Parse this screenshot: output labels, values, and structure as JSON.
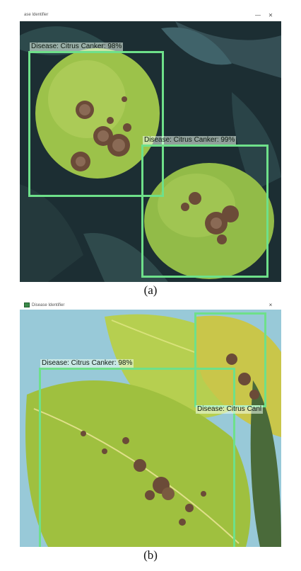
{
  "panel_a": {
    "window_title": "ase Identifier",
    "minimize_glyph": "—",
    "close_glyph": "⨯",
    "detections": [
      {
        "label": "Disease: Citrus Canker: 98%"
      },
      {
        "label": "Disease: Citrus Canker: 99%"
      }
    ],
    "caption": "(a)"
  },
  "panel_b": {
    "window_title": "Disease Identifier",
    "close_glyph": "×",
    "detections": [
      {
        "label": "Disease: Citrus Canker: 98%"
      },
      {
        "label": "Disease: Citrus Canl"
      }
    ],
    "caption": "(b)"
  },
  "colors": {
    "bbox": "#6ee08a",
    "leaf_dark": "#1c2e33",
    "fruit": "#9cc24a",
    "leaf_light": "#b6cf50",
    "sky": "#8fc3d6"
  }
}
